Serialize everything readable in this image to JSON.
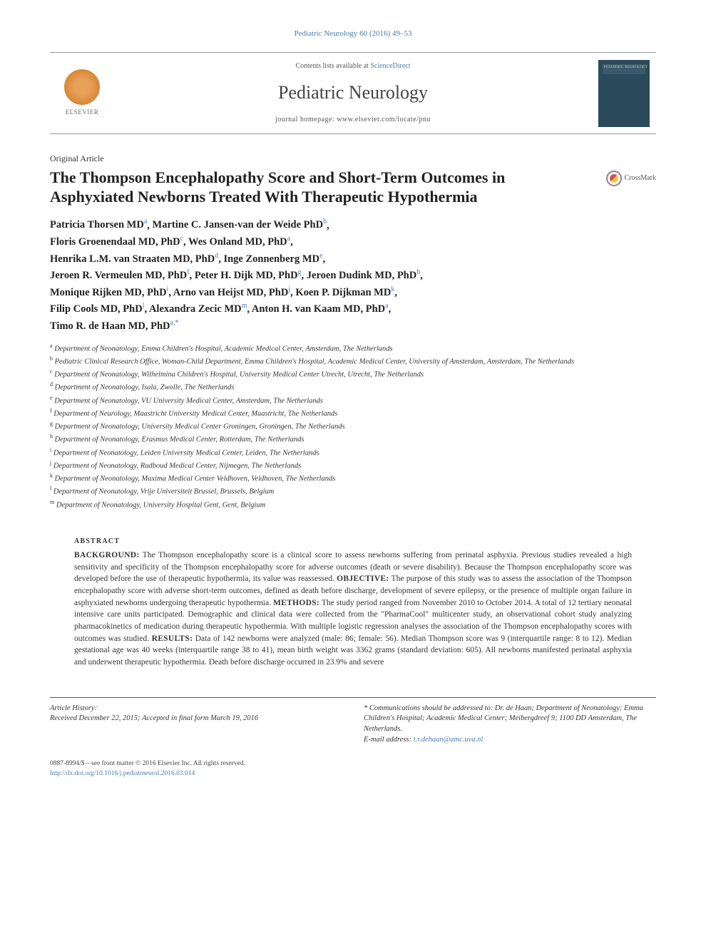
{
  "running_head": "Pediatric Neurology 60 (2016) 49–53",
  "masthead": {
    "contents_prefix": "Contents lists available at ",
    "contents_link": "ScienceDirect",
    "journal_name": "Pediatric Neurology",
    "homepage_prefix": "journal homepage: ",
    "homepage_url": "www.elsevier.com/locate/pnu",
    "publisher_label": "ELSEVIER",
    "cover_label": "PEDIATRIC NEUROLOGY"
  },
  "article_type": "Original Article",
  "title": "The Thompson Encephalopathy Score and Short-Term Outcomes in Asphyxiated Newborns Treated With Therapeutic Hypothermia",
  "crossmark_label": "CrossMark",
  "authors": [
    {
      "name": "Patricia Thorsen MD",
      "aff": "a"
    },
    {
      "name": "Martine C. Jansen-van der Weide PhD",
      "aff": "b"
    },
    {
      "name": "Floris Groenendaal MD, PhD",
      "aff": "c"
    },
    {
      "name": "Wes Onland MD, PhD",
      "aff": "a"
    },
    {
      "name": "Henrika L.M. van Straaten MD, PhD",
      "aff": "d"
    },
    {
      "name": "Inge Zonnenberg MD",
      "aff": "e"
    },
    {
      "name": "Jeroen R. Vermeulen MD, PhD",
      "aff": "f"
    },
    {
      "name": "Peter H. Dijk MD, PhD",
      "aff": "g"
    },
    {
      "name": "Jeroen Dudink MD, PhD",
      "aff": "h"
    },
    {
      "name": "Monique Rijken MD, PhD",
      "aff": "i"
    },
    {
      "name": "Arno van Heijst MD, PhD",
      "aff": "j"
    },
    {
      "name": "Koen P. Dijkman MD",
      "aff": "k"
    },
    {
      "name": "Filip Cools MD, PhD",
      "aff": "l"
    },
    {
      "name": "Alexandra Zecic MD",
      "aff": "m"
    },
    {
      "name": "Anton H. van Kaam MD, PhD",
      "aff": "a"
    },
    {
      "name": "Timo R. de Haan MD, PhD",
      "aff": "a",
      "corr": true
    }
  ],
  "affiliations": [
    {
      "key": "a",
      "text": "Department of Neonatology, Emma Children's Hospital, Academic Medical Center, Amsterdam, The Netherlands"
    },
    {
      "key": "b",
      "text": "Pediatric Clinical Research Office, Woman-Child Department, Emma Children's Hospital, Academic Medical Center, University of Amsterdam, Amsterdam, The Netherlands"
    },
    {
      "key": "c",
      "text": "Department of Neonatology, Wilhelmina Children's Hospital, University Medical Center Utrecht, Utrecht, The Netherlands"
    },
    {
      "key": "d",
      "text": "Department of Neonatology, Isala, Zwolle, The Netherlands"
    },
    {
      "key": "e",
      "text": "Department of Neonatology, VU University Medical Center, Amsterdam, The Netherlands"
    },
    {
      "key": "f",
      "text": "Department of Neurology, Maastricht University Medical Center, Maastricht, The Netherlands"
    },
    {
      "key": "g",
      "text": "Department of Neonatology, University Medical Center Groningen, Groningen, The Netherlands"
    },
    {
      "key": "h",
      "text": "Department of Neonatology, Erasmus Medical Center, Rotterdam, The Netherlands"
    },
    {
      "key": "i",
      "text": "Department of Neonatology, Leiden University Medical Center, Leiden, The Netherlands"
    },
    {
      "key": "j",
      "text": "Department of Neonatology, Radboud Medical Center, Nijmegen, The Netherlands"
    },
    {
      "key": "k",
      "text": "Department of Neonatology, Maxima Medical Center Veldhoven, Veldhoven, The Netherlands"
    },
    {
      "key": "l",
      "text": "Department of Neonatology, Vrije Universiteit Brussel, Brussels, Belgium"
    },
    {
      "key": "m",
      "text": "Department of Neonatology, University Hospital Gent, Gent, Belgium"
    }
  ],
  "abstract": {
    "heading": "ABSTRACT",
    "sections": [
      {
        "label": "BACKGROUND:",
        "text": "The Thompson encephalopathy score is a clinical score to assess newborns suffering from perinatal asphyxia. Previous studies revealed a high sensitivity and specificity of the Thompson encephalopathy score for adverse outcomes (death or severe disability). Because the Thompson encephalopathy score was developed before the use of therapeutic hypothermia, its value was reassessed."
      },
      {
        "label": "OBJECTIVE:",
        "text": "The purpose of this study was to assess the association of the Thompson encephalopathy score with adverse short-term outcomes, defined as death before discharge, development of severe epilepsy, or the presence of multiple organ failure in asphyxiated newborns undergoing therapeutic hypothermia."
      },
      {
        "label": "METHODS:",
        "text": "The study period ranged from November 2010 to October 2014. A total of 12 tertiary neonatal intensive care units participated. Demographic and clinical data were collected from the \"PharmaCool\" multicenter study, an observational cohort study analyzing pharmacokinetics of medication during therapeutic hypothermia. With multiple logistic regression analyses the association of the Thompson encephalopathy scores with outcomes was studied."
      },
      {
        "label": "RESULTS:",
        "text": "Data of 142 newborns were analyzed (male: 86; female: 56). Median Thompson score was 9 (interquartile range: 8 to 12). Median gestational age was 40 weeks (interquartile range 38 to 41), mean birth weight was 3362 grams (standard deviation: 605). All newborns manifested perinatal asphyxia and underwent therapeutic hypothermia. Death before discharge occurred in 23.9% and severe"
      }
    ]
  },
  "footer": {
    "history_heading": "Article History:",
    "history_text": "Received December 22, 2015; Accepted in final form March 19, 2016",
    "corr_text": "* Communications should be addressed to: Dr. de Haan; Department of Neonatology; Emma Children's Hospital; Academic Medical Center; Meibergdreef 9; 1100 DD Amsterdam, The Netherlands.",
    "email_label": "E-mail address:",
    "email": "t.r.dehaan@amc.uva.nl"
  },
  "bottom": {
    "issn_line": "0887-8994/$ – see front matter © 2016 Elsevier Inc. All rights reserved.",
    "doi": "http://dx.doi.org/10.1016/j.pediatrneurol.2016.03.014"
  },
  "colors": {
    "link": "#4a7ba8",
    "text": "#333333",
    "rule": "#999999"
  }
}
